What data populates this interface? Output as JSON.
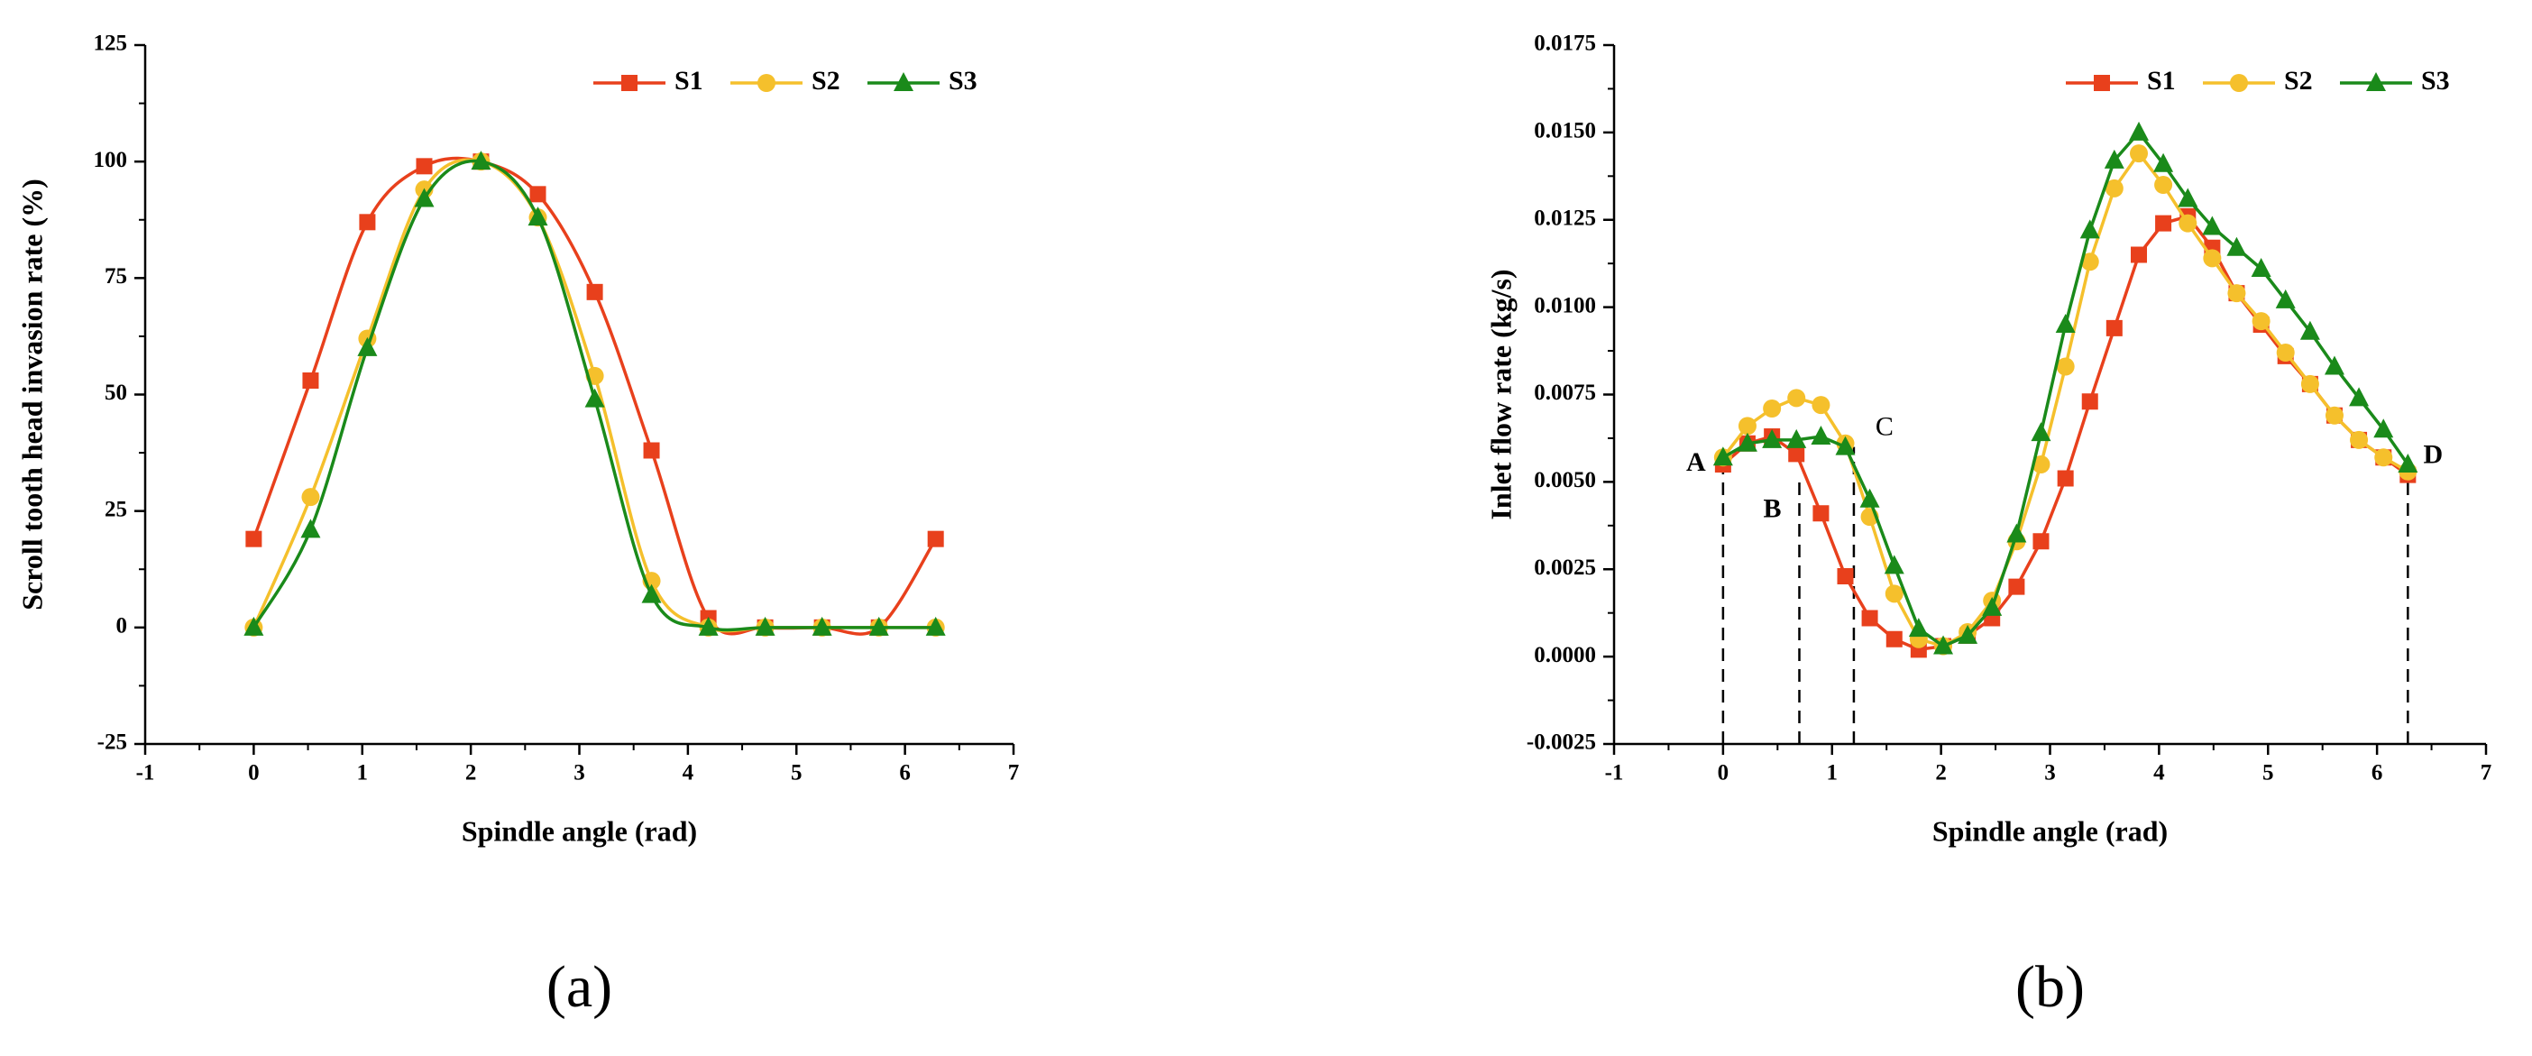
{
  "chart_data": [
    {
      "type": "line",
      "panel_label": "(a)",
      "smooth": true,
      "legend": "top-right",
      "xlabel": "Spindle angle (rad)",
      "ylabel": "Scroll tooth head invasion rate (%)",
      "xlim": [
        -1,
        7
      ],
      "xticks": [
        -1,
        0,
        1,
        2,
        3,
        4,
        5,
        6,
        7
      ],
      "ylim": [
        -25,
        125
      ],
      "yticks": [
        -25,
        0,
        25,
        50,
        75,
        100,
        125
      ],
      "x": [
        0,
        0.524,
        1.047,
        1.571,
        2.094,
        2.618,
        3.142,
        3.665,
        4.189,
        4.712,
        5.236,
        5.76,
        6.283
      ],
      "series": [
        {
          "name": "S1",
          "color": "#e8401c",
          "marker": "square",
          "values": [
            19,
            53,
            87,
            99,
            100,
            93,
            72,
            38,
            2,
            0,
            0,
            0,
            19
          ]
        },
        {
          "name": "S2",
          "color": "#f5c02c",
          "marker": "circle",
          "values": [
            0,
            28,
            62,
            94,
            100,
            88,
            54,
            10,
            0,
            0,
            0,
            0,
            0
          ]
        },
        {
          "name": "S3",
          "color": "#1a8a1a",
          "marker": "triangle",
          "values": [
            0,
            21,
            60,
            92,
            100,
            88,
            49,
            7,
            0,
            0,
            0,
            0,
            0
          ]
        }
      ]
    },
    {
      "type": "line",
      "panel_label": "(b)",
      "smooth": false,
      "legend": "top-right",
      "xlabel": "Spindle angle (rad)",
      "ylabel": "Inlet flow rate (kg/s)",
      "xlim": [
        -1,
        7
      ],
      "xticks": [
        -1,
        0,
        1,
        2,
        3,
        4,
        5,
        6,
        7
      ],
      "ylim": [
        -0.0025,
        0.0175
      ],
      "yticks": [
        {
          "value": -0.0025,
          "label": "-0.0025"
        },
        {
          "value": 0,
          "label": "0.0000"
        },
        {
          "value": 0.0025,
          "label": "0.0025"
        },
        {
          "value": 0.005,
          "label": "0.0050"
        },
        {
          "value": 0.0075,
          "label": "0.0075"
        },
        {
          "value": 0.01,
          "label": "0.0100"
        },
        {
          "value": 0.0125,
          "label": "0.0125"
        },
        {
          "value": 0.015,
          "label": "0.0150"
        },
        {
          "value": 0.0175,
          "label": "0.0175"
        }
      ],
      "x": [
        0,
        0.224,
        0.449,
        0.673,
        0.898,
        1.122,
        1.346,
        1.571,
        1.795,
        2.02,
        2.244,
        2.468,
        2.693,
        2.917,
        3.142,
        3.366,
        3.59,
        3.815,
        4.039,
        4.264,
        4.488,
        4.712,
        4.937,
        5.161,
        5.386,
        5.61,
        5.834,
        6.059,
        6.283
      ],
      "series": [
        {
          "name": "S1",
          "color": "#e8401c",
          "marker": "square",
          "values": [
            0.0055,
            0.0061,
            0.0063,
            0.0058,
            0.0041,
            0.0023,
            0.0011,
            0.0005,
            0.0002,
            0.0003,
            0.0006,
            0.0011,
            0.002,
            0.0033,
            0.0051,
            0.0073,
            0.0094,
            0.0115,
            0.0124,
            0.0126,
            0.0117,
            0.0104,
            0.0095,
            0.0086,
            0.0078,
            0.0069,
            0.0062,
            0.0057,
            0.0052
          ]
        },
        {
          "name": "S2",
          "color": "#f5c02c",
          "marker": "circle",
          "values": [
            0.0057,
            0.0066,
            0.0071,
            0.0074,
            0.0072,
            0.0061,
            0.004,
            0.0018,
            0.0005,
            0.0003,
            0.0007,
            0.0016,
            0.0033,
            0.0055,
            0.0083,
            0.0113,
            0.0134,
            0.0144,
            0.0135,
            0.0124,
            0.0114,
            0.0104,
            0.0096,
            0.0087,
            0.0078,
            0.0069,
            0.0062,
            0.0057,
            0.0053
          ]
        },
        {
          "name": "S3",
          "color": "#1a8a1a",
          "marker": "triangle",
          "values": [
            0.0057,
            0.0061,
            0.0062,
            0.0062,
            0.0063,
            0.006,
            0.0045,
            0.0026,
            0.0008,
            0.0003,
            0.0006,
            0.0014,
            0.0035,
            0.0064,
            0.0095,
            0.0122,
            0.0142,
            0.015,
            0.0141,
            0.0131,
            0.0123,
            0.0117,
            0.0111,
            0.0102,
            0.0093,
            0.0083,
            0.0074,
            0.0065,
            0.0055
          ]
        }
      ],
      "markers": [
        {
          "label": "A",
          "x": 0,
          "y": 0.0055
        },
        {
          "label": "B",
          "x": 0.7,
          "y": 0.0052
        },
        {
          "label": "C",
          "x": 1.2,
          "y": 0.006
        },
        {
          "label": "D",
          "x": 6.283,
          "y": 0.0052
        }
      ]
    }
  ]
}
